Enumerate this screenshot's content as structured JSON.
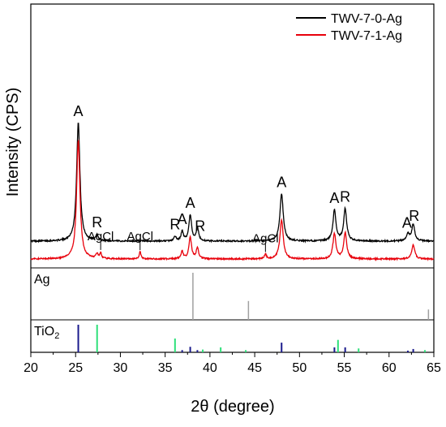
{
  "chart_data": {
    "type": "line",
    "title": "",
    "xlabel": "2θ (degree)",
    "ylabel": "Intensity (CPS)",
    "xlim": [
      20,
      65
    ],
    "xticks": [
      20,
      25,
      30,
      35,
      40,
      45,
      50,
      55,
      60,
      65
    ],
    "xtick_labels": [
      "20",
      "25",
      "30",
      "35",
      "40",
      "45",
      "50",
      "55",
      "60",
      "65"
    ],
    "legend_position": "top-right",
    "series": [
      {
        "name": "TWV-7-0-Ag",
        "color": "#000000",
        "baseline": 0.17,
        "noise": 0.012,
        "peaks": [
          {
            "x": 25.3,
            "h": 1.0,
            "w": 0.22
          },
          {
            "x": 27.4,
            "h": 0.05,
            "w": 0.15
          },
          {
            "x": 36.1,
            "h": 0.04,
            "w": 0.15
          },
          {
            "x": 36.9,
            "h": 0.08,
            "w": 0.15
          },
          {
            "x": 37.8,
            "h": 0.22,
            "w": 0.18
          },
          {
            "x": 38.6,
            "h": 0.11,
            "w": 0.16
          },
          {
            "x": 48.0,
            "h": 0.4,
            "w": 0.22
          },
          {
            "x": 53.9,
            "h": 0.26,
            "w": 0.2
          },
          {
            "x": 55.1,
            "h": 0.27,
            "w": 0.2
          },
          {
            "x": 62.1,
            "h": 0.06,
            "w": 0.2
          },
          {
            "x": 62.7,
            "h": 0.14,
            "w": 0.2
          }
        ]
      },
      {
        "name": "TWV-7-1-Ag",
        "color": "#e8000b",
        "baseline": 0.02,
        "noise": 0.012,
        "peaks": [
          {
            "x": 25.3,
            "h": 1.0,
            "w": 0.22
          },
          {
            "x": 27.4,
            "h": 0.04,
            "w": 0.15
          },
          {
            "x": 27.8,
            "h": 0.05,
            "w": 0.1
          },
          {
            "x": 32.2,
            "h": 0.06,
            "w": 0.12
          },
          {
            "x": 36.9,
            "h": 0.06,
            "w": 0.15
          },
          {
            "x": 37.8,
            "h": 0.18,
            "w": 0.18
          },
          {
            "x": 38.6,
            "h": 0.09,
            "w": 0.16
          },
          {
            "x": 46.2,
            "h": 0.04,
            "w": 0.12
          },
          {
            "x": 48.0,
            "h": 0.33,
            "w": 0.22
          },
          {
            "x": 53.9,
            "h": 0.21,
            "w": 0.2
          },
          {
            "x": 55.1,
            "h": 0.22,
            "w": 0.2
          },
          {
            "x": 62.7,
            "h": 0.12,
            "w": 0.2
          }
        ]
      }
    ],
    "peak_annotations": [
      {
        "text": "A",
        "x": 25.3,
        "series": 0
      },
      {
        "text": "R",
        "x": 27.4,
        "series": 0
      },
      {
        "text": "R",
        "x": 36.1,
        "series": 0
      },
      {
        "text": "A",
        "x": 36.9,
        "series": 0
      },
      {
        "text": "A",
        "x": 37.8,
        "series": 0
      },
      {
        "text": "R",
        "x": 38.9,
        "series": 0
      },
      {
        "text": "A",
        "x": 48.0,
        "series": 0
      },
      {
        "text": "A",
        "x": 53.9,
        "series": 0
      },
      {
        "text": "R",
        "x": 55.1,
        "series": 0
      },
      {
        "text": "A",
        "x": 62.0,
        "series": 0
      },
      {
        "text": "R",
        "x": 62.8,
        "series": 0
      },
      {
        "text": "AgCl",
        "x": 27.8,
        "series": 1
      },
      {
        "text": "AgCl",
        "x": 32.2,
        "series": 1
      },
      {
        "text": "AgCl",
        "x": 46.2,
        "series": 1
      }
    ],
    "reference_panels": [
      {
        "label": "Ag",
        "lines": [
          {
            "x": 38.1,
            "h": 1.0,
            "color": "#a0a0a0"
          },
          {
            "x": 44.3,
            "h": 0.4,
            "color": "#a0a0a0"
          },
          {
            "x": 64.4,
            "h": 0.22,
            "color": "#a0a0a0"
          }
        ]
      },
      {
        "label": "TiO2",
        "lines": [
          {
            "x": 25.3,
            "h": 1.0,
            "color": "#1a1a8c"
          },
          {
            "x": 27.4,
            "h": 1.0,
            "color": "#2ee07a"
          },
          {
            "x": 36.1,
            "h": 0.5,
            "color": "#2ee07a"
          },
          {
            "x": 36.9,
            "h": 0.08,
            "color": "#1a1a8c"
          },
          {
            "x": 37.8,
            "h": 0.2,
            "color": "#1a1a8c"
          },
          {
            "x": 38.6,
            "h": 0.08,
            "color": "#1a1a8c"
          },
          {
            "x": 39.2,
            "h": 0.1,
            "color": "#2ee07a"
          },
          {
            "x": 41.2,
            "h": 0.18,
            "color": "#2ee07a"
          },
          {
            "x": 44.0,
            "h": 0.08,
            "color": "#2ee07a"
          },
          {
            "x": 48.0,
            "h": 0.35,
            "color": "#1a1a8c"
          },
          {
            "x": 53.9,
            "h": 0.18,
            "color": "#1a1a8c"
          },
          {
            "x": 54.3,
            "h": 0.45,
            "color": "#2ee07a"
          },
          {
            "x": 55.1,
            "h": 0.18,
            "color": "#1a1a8c"
          },
          {
            "x": 56.6,
            "h": 0.14,
            "color": "#2ee07a"
          },
          {
            "x": 62.1,
            "h": 0.06,
            "color": "#1a1a8c"
          },
          {
            "x": 62.7,
            "h": 0.12,
            "color": "#1a1a8c"
          },
          {
            "x": 64.0,
            "h": 0.08,
            "color": "#2ee07a"
          }
        ]
      }
    ]
  }
}
